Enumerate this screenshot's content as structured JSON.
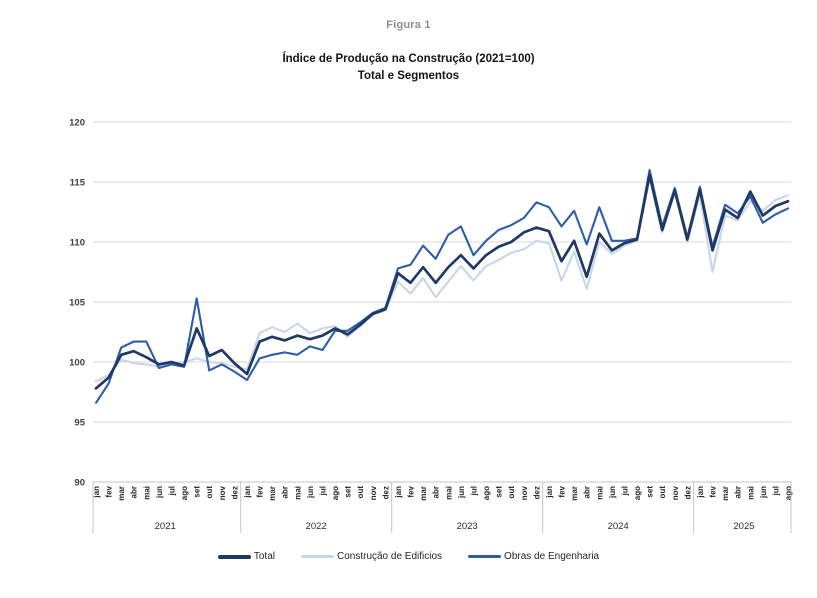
{
  "figure": {
    "caption": "Figura 1",
    "title_line1": "Índice de Produção na Construção (2021=100)",
    "title_line2": "Total e Segmentos"
  },
  "legend": [
    {
      "key": "total",
      "name": "Total",
      "color": "#1F3864",
      "swatch_height": 4
    },
    {
      "key": "construcao-de-edificios",
      "name": "Construção de Edificios",
      "color": "#C8D6EA",
      "swatch_height": 2.5
    },
    {
      "key": "obras-de-engenharia",
      "name": "Obras de Engenharia",
      "color": "#2E5CA6",
      "swatch_height": 2.5
    }
  ],
  "chart_data": {
    "type": "line",
    "title": "Índice de Produção na Construção (2021=100)",
    "subtitle": "Total e Segmentos",
    "grid": true,
    "legend_position": "bottom",
    "y_axis": {
      "min": 90,
      "max": 120,
      "step": 5
    },
    "month_names": [
      "jan",
      "fev",
      "mar",
      "abr",
      "mai",
      "jun",
      "jul",
      "ago",
      "set",
      "out",
      "nov",
      "dez"
    ],
    "years": [
      {
        "label": "2021",
        "months": 12
      },
      {
        "label": "2022",
        "months": 12
      },
      {
        "label": "2023",
        "months": 12
      },
      {
        "label": "2024",
        "months": 12
      },
      {
        "label": "2025",
        "months": 8
      }
    ],
    "series": [
      {
        "name": "Construção de Edificios",
        "color": "#C8D6EA",
        "width": 2.1,
        "values": [
          98.4,
          98.9,
          100.2,
          99.9,
          99.8,
          99.6,
          99.9,
          100.0,
          100.3,
          100.0,
          99.9,
          99.6,
          99.4,
          102.4,
          102.9,
          102.5,
          103.2,
          102.4,
          102.8,
          103.0,
          102.1,
          103.0,
          104.0,
          104.3,
          106.7,
          105.7,
          107.0,
          105.4,
          106.7,
          108.0,
          106.8,
          108.0,
          108.5,
          109.1,
          109.4,
          110.1,
          109.9,
          106.8,
          109.2,
          106.1,
          110.0,
          109.0,
          109.7,
          110.1,
          115.3,
          110.8,
          114.1,
          110.0,
          113.9,
          107.5,
          112.2,
          111.8,
          113.4,
          112.6,
          113.5,
          113.9
        ]
      },
      {
        "name": "Obras de Engenharia",
        "color": "#2E5CA6",
        "width": 2.1,
        "values": [
          96.6,
          98.2,
          101.2,
          101.7,
          101.7,
          99.5,
          99.8,
          99.6,
          105.3,
          99.3,
          99.8,
          99.2,
          98.5,
          100.3,
          100.6,
          100.8,
          100.6,
          101.3,
          101.0,
          102.6,
          102.6,
          103.3,
          104.1,
          104.5,
          107.8,
          108.1,
          109.7,
          108.6,
          110.6,
          111.3,
          108.9,
          110.1,
          111.0,
          111.4,
          112.0,
          113.3,
          112.9,
          111.3,
          112.6,
          109.8,
          112.9,
          110.1,
          110.1,
          110.3,
          116.0,
          111.3,
          114.5,
          110.4,
          114.6,
          109.6,
          113.1,
          112.4,
          113.8,
          111.6,
          112.3,
          112.8
        ]
      },
      {
        "name": "Total",
        "color": "#1F3864",
        "width": 2.7,
        "values": [
          97.8,
          98.7,
          100.6,
          100.9,
          100.4,
          99.8,
          100.0,
          99.7,
          102.8,
          100.5,
          101.0,
          99.9,
          99.0,
          101.7,
          102.1,
          101.8,
          102.2,
          101.9,
          102.2,
          102.8,
          102.3,
          103.1,
          104.0,
          104.4,
          107.4,
          106.6,
          107.9,
          106.6,
          107.9,
          108.9,
          107.8,
          108.9,
          109.6,
          110.0,
          110.8,
          111.2,
          110.9,
          108.4,
          110.1,
          107.1,
          110.7,
          109.3,
          109.9,
          110.2,
          115.6,
          111.0,
          114.3,
          110.2,
          114.4,
          109.3,
          112.7,
          112.0,
          114.2,
          112.2,
          113.0,
          113.4
        ]
      }
    ]
  },
  "colors": {
    "gridline": "#D9D9D9",
    "axis_line": "#C6C6C6",
    "tick_label": "#3f3f3f",
    "caption_gray": "#8f8f8f"
  }
}
